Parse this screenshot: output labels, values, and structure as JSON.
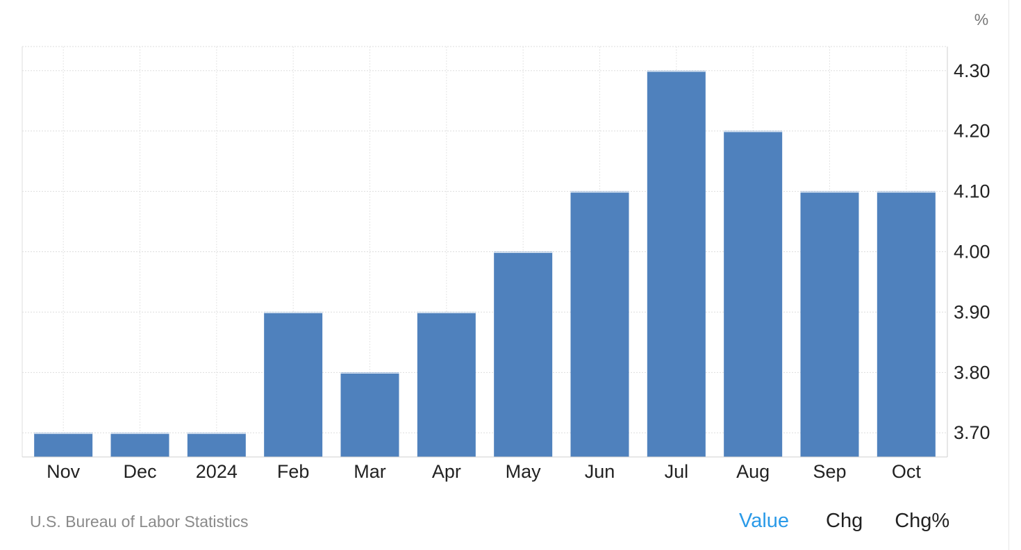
{
  "chart_data": {
    "type": "bar",
    "categories": [
      "Nov",
      "Dec",
      "2024",
      "Feb",
      "Mar",
      "Apr",
      "May",
      "Jun",
      "Jul",
      "Aug",
      "Sep",
      "Oct"
    ],
    "values": [
      3.7,
      3.7,
      3.7,
      3.9,
      3.8,
      3.9,
      4.0,
      4.1,
      4.3,
      4.2,
      4.1,
      4.1
    ],
    "ylabel": "%",
    "ylim": [
      3.66,
      4.34
    ],
    "yticks": [
      "3.70",
      "3.80",
      "3.90",
      "4.00",
      "4.10",
      "4.20",
      "4.30"
    ],
    "ytick_values": [
      3.7,
      3.8,
      3.9,
      4.0,
      4.1,
      4.2,
      4.3
    ],
    "y_axis_side": "right",
    "grid": true,
    "bar_color": "#4f81bd"
  },
  "footer": {
    "source": "U.S. Bureau of Labor Statistics",
    "tabs": [
      "Value",
      "Chg",
      "Chg%"
    ],
    "active_tab": "Value"
  },
  "colors": {
    "accent": "#2a9ae8",
    "grid": "#dddddd"
  }
}
